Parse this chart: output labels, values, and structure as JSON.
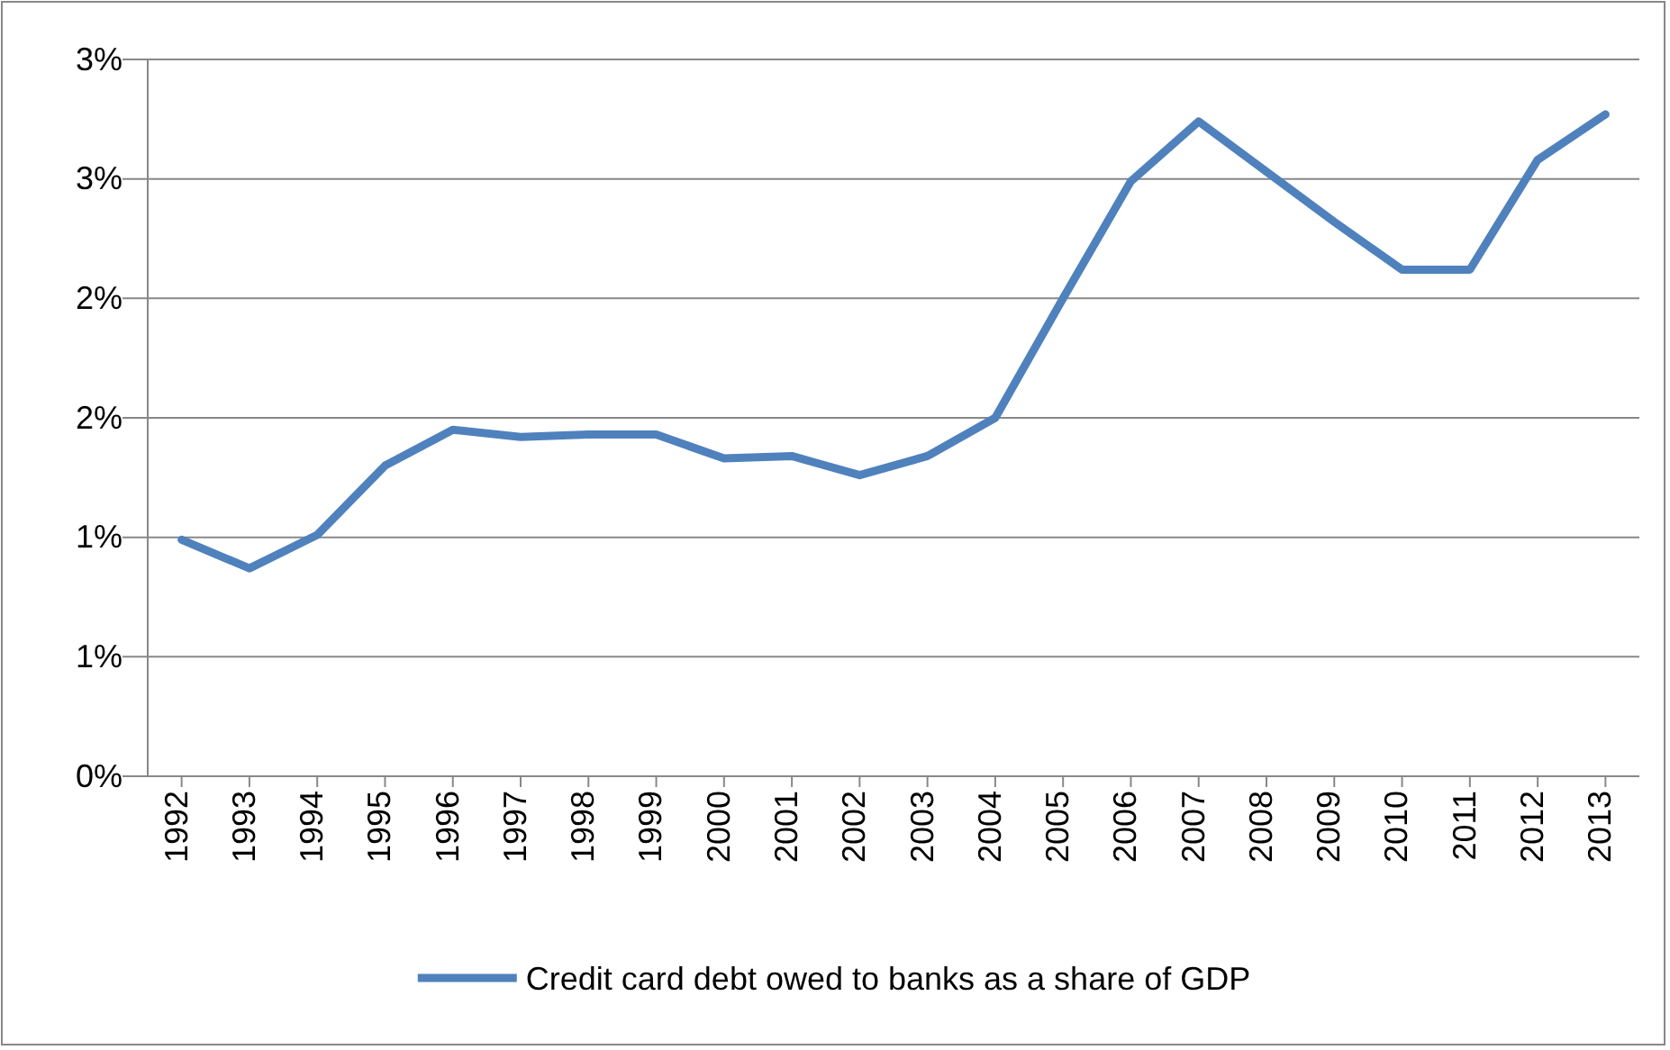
{
  "chart_data": {
    "type": "line",
    "categories": [
      "1992",
      "1993",
      "1994",
      "1995",
      "1996",
      "1997",
      "1998",
      "1999",
      "2000",
      "2001",
      "2002",
      "2003",
      "2004",
      "2005",
      "2006",
      "2007",
      "2008",
      "2009",
      "2010",
      "2011",
      "2012",
      "2013"
    ],
    "series": [
      {
        "name": "Credit card debt owed to banks as a share of GDP",
        "color": "#4f81bd",
        "values": [
          0.99,
          0.87,
          1.01,
          1.3,
          1.45,
          1.42,
          1.43,
          1.43,
          1.33,
          1.34,
          1.26,
          1.34,
          1.5,
          2.0,
          2.49,
          2.74,
          2.53,
          2.32,
          2.12,
          2.12,
          2.58,
          2.77
        ]
      }
    ],
    "ylim": [
      0,
      3
    ],
    "yticks": [
      {
        "value": 0,
        "label": "0%"
      },
      {
        "value": 0.5,
        "label": "1%"
      },
      {
        "value": 1,
        "label": "1%"
      },
      {
        "value": 1.5,
        "label": "2%"
      },
      {
        "value": 2,
        "label": "2%"
      },
      {
        "value": 2.5,
        "label": "3%"
      },
      {
        "value": 3,
        "label": "3%"
      }
    ],
    "grid": "y",
    "legend": "bottom",
    "marker": "none",
    "line_style": "solid"
  }
}
